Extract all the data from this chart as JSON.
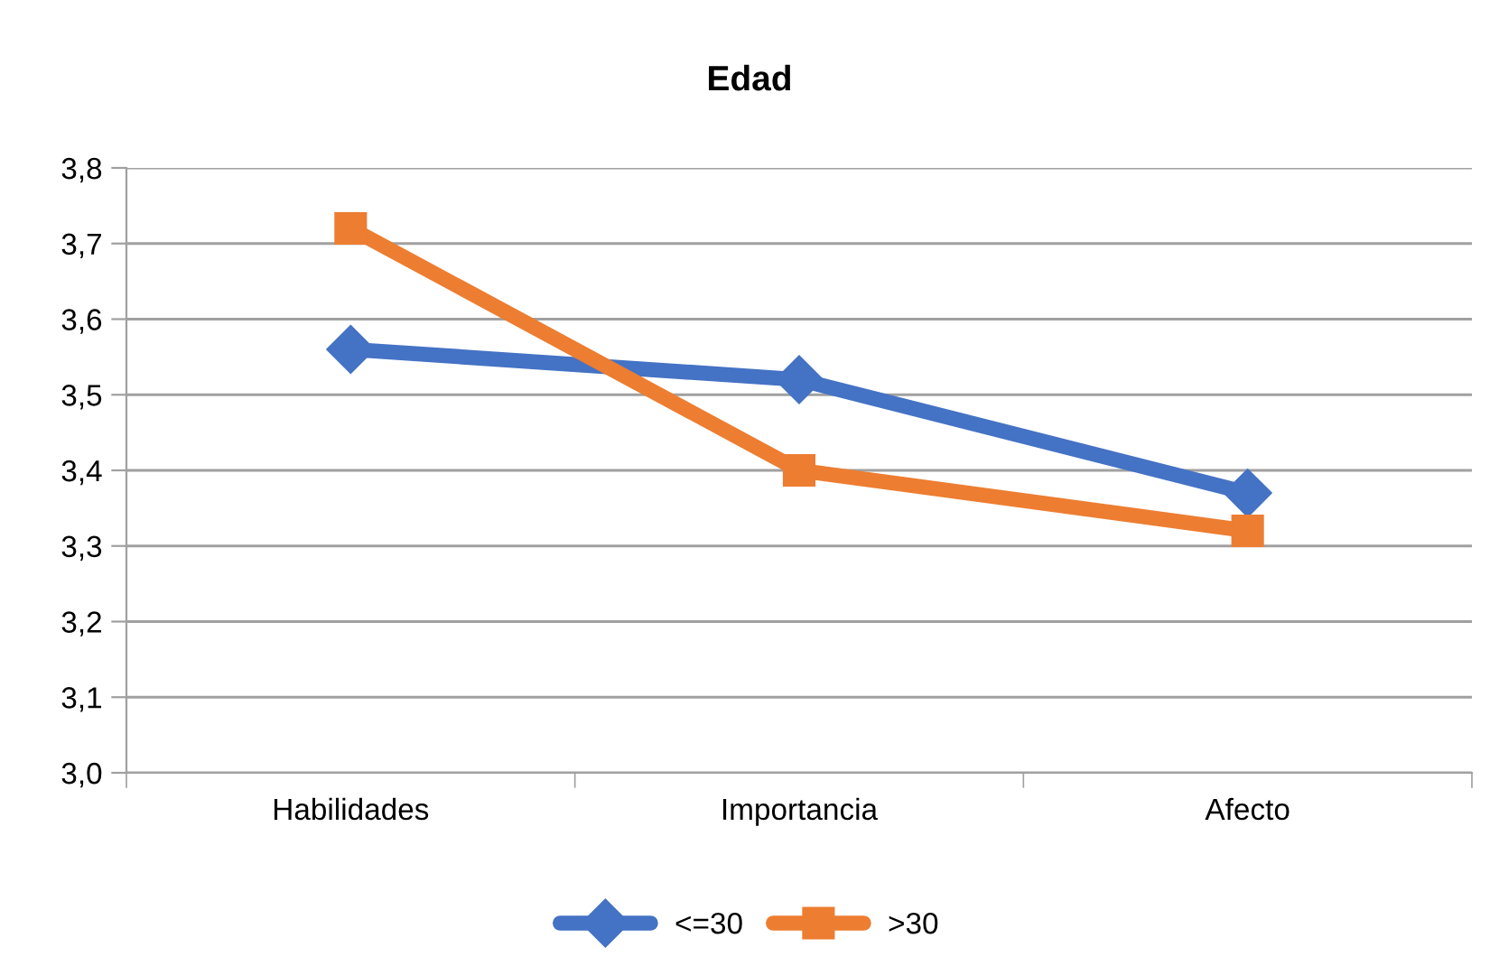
{
  "chart_data": {
    "type": "line",
    "title": "Edad",
    "categories": [
      "Habilidades",
      "Importancia",
      "Afecto"
    ],
    "series": [
      {
        "name": "<=30",
        "color": "#4472c4",
        "marker": "diamond",
        "values": [
          3.56,
          3.52,
          3.37
        ]
      },
      {
        "name": ">30",
        "color": "#ed7d31",
        "marker": "square",
        "values": [
          3.72,
          3.4,
          3.32
        ]
      }
    ],
    "ylim": [
      3.0,
      3.8
    ],
    "yticks": [
      {
        "value": 3.0,
        "label": "3,0"
      },
      {
        "value": 3.1,
        "label": "3,1"
      },
      {
        "value": 3.2,
        "label": "3,2"
      },
      {
        "value": 3.3,
        "label": "3,3"
      },
      {
        "value": 3.4,
        "label": "3,4"
      },
      {
        "value": 3.5,
        "label": "3,5"
      },
      {
        "value": 3.6,
        "label": "3,6"
      },
      {
        "value": 3.7,
        "label": "3,7"
      },
      {
        "value": 3.8,
        "label": "3,8"
      }
    ],
    "grid": "y",
    "legend": "bottom"
  }
}
